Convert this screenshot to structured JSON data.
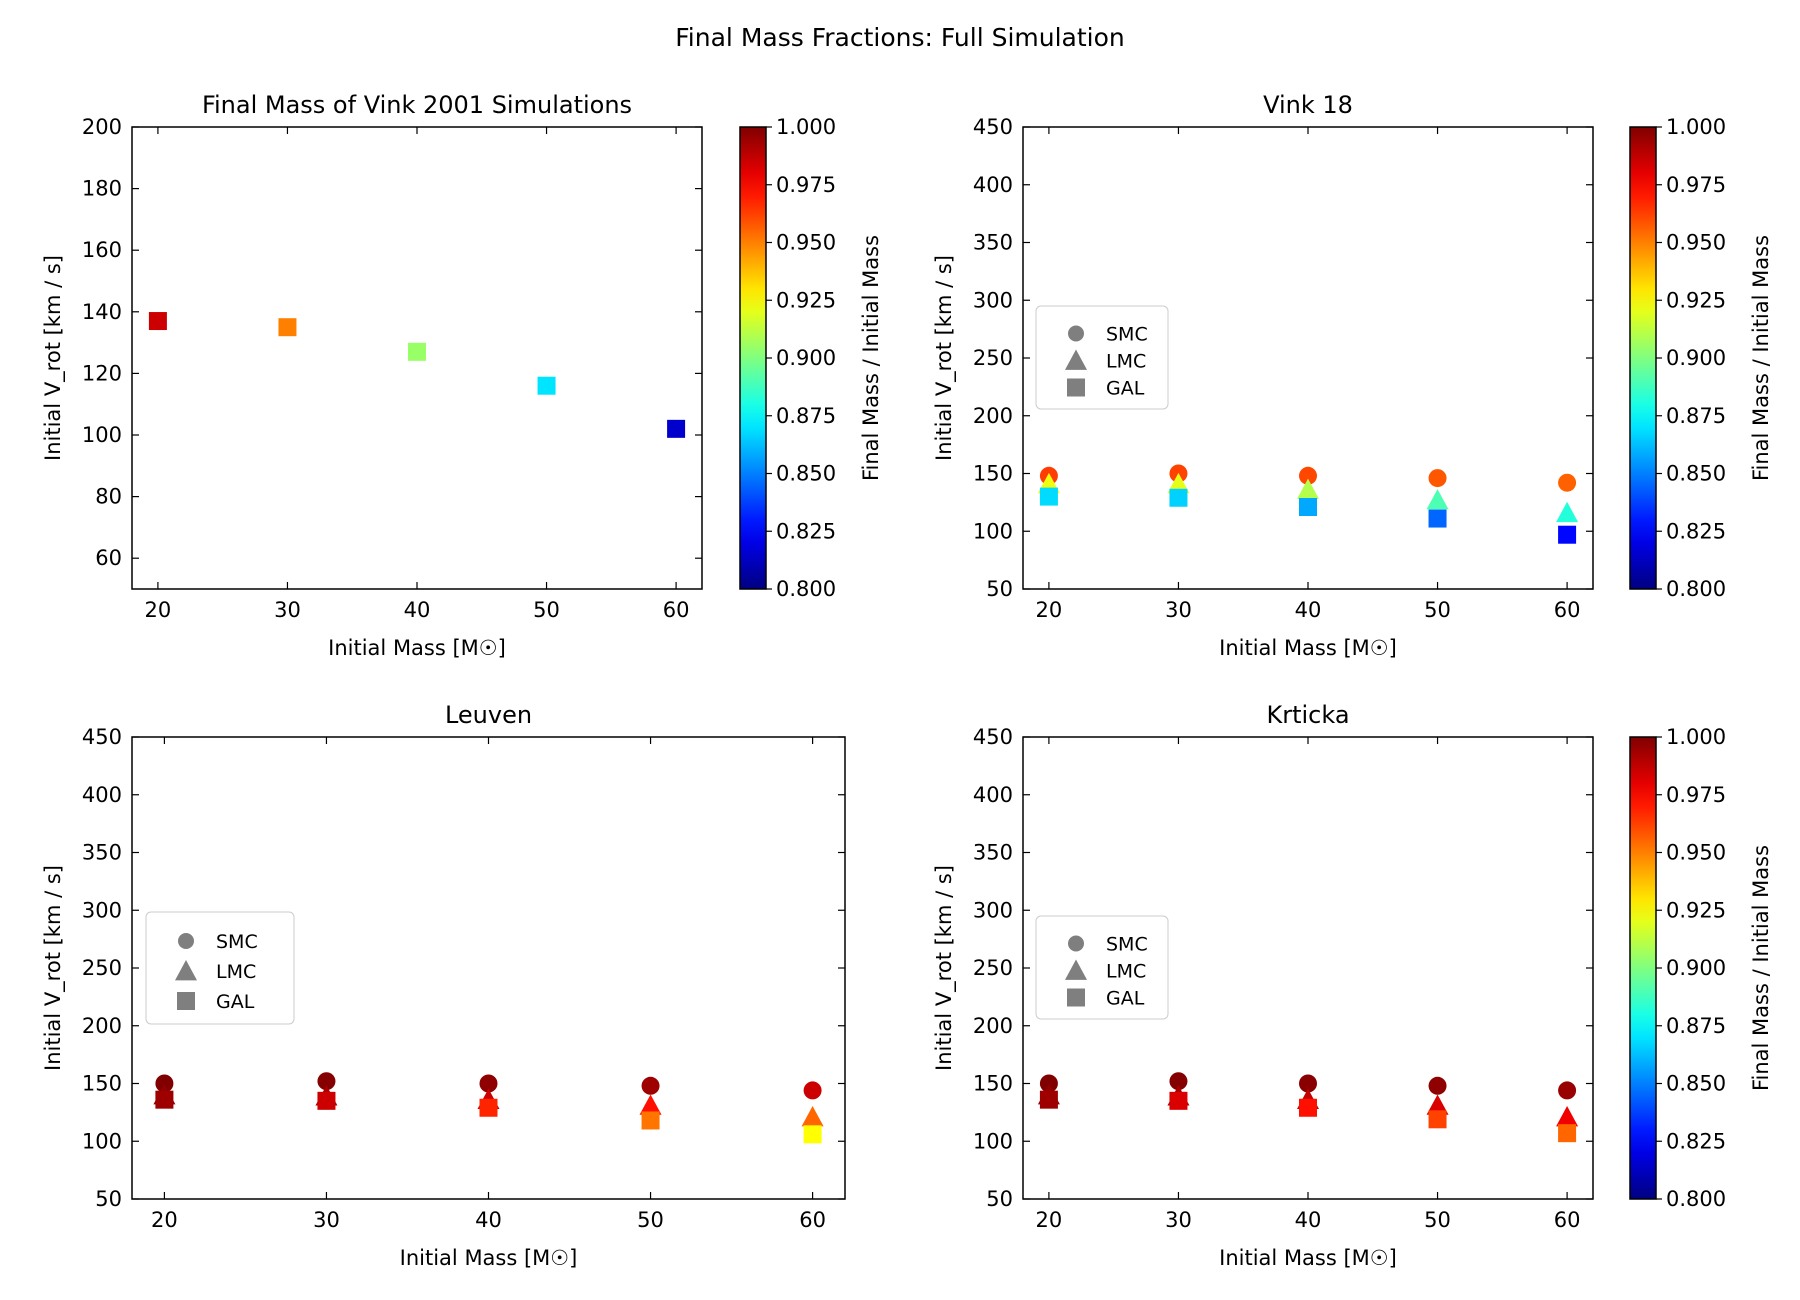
{
  "suptitle": "Final Mass Fractions: Full Simulation",
  "chart_data": [
    {
      "type": "scatter",
      "title": "Final Mass of Vink 2001 Simulations",
      "xlabel": "Initial Mass [M☉]",
      "ylabel": "Initial V_rot [km / s]",
      "xlim": [
        18,
        62
      ],
      "ylim": [
        50,
        200
      ],
      "xticks": [
        20,
        30,
        40,
        50,
        60
      ],
      "yticks": [
        60,
        80,
        100,
        120,
        140,
        160,
        180,
        200
      ],
      "legend": null,
      "colorbar": {
        "label": "Final Mass / Initial Mass",
        "range": [
          0.8,
          1.0
        ],
        "ticks": [
          "0.800",
          "0.825",
          "0.850",
          "0.875",
          "0.900",
          "0.925",
          "0.950",
          "0.975",
          "1.000"
        ]
      },
      "series": [
        {
          "marker": "square",
          "points": [
            {
              "x": 20,
              "y": 137,
              "c": 0.985
            },
            {
              "x": 30,
              "y": 135,
              "c": 0.95
            },
            {
              "x": 40,
              "y": 127,
              "c": 0.905
            },
            {
              "x": 50,
              "y": 116,
              "c": 0.87
            },
            {
              "x": 60,
              "y": 102,
              "c": 0.815
            }
          ]
        }
      ]
    },
    {
      "type": "scatter",
      "title": "Vink 18",
      "xlabel": "Initial Mass [M☉]",
      "ylabel": "Initial V_rot [km / s]",
      "xlim": [
        18,
        62
      ],
      "ylim": [
        50,
        450
      ],
      "xticks": [
        20,
        30,
        40,
        50,
        60
      ],
      "yticks": [
        50,
        100,
        150,
        200,
        250,
        300,
        350,
        400,
        450
      ],
      "legend": {
        "position": "center-left",
        "entries": [
          "SMC",
          "LMC",
          "GAL"
        ]
      },
      "colorbar": {
        "label": "Final Mass / Initial Mass",
        "range": [
          0.8,
          1.0
        ],
        "ticks": [
          "0.800",
          "0.825",
          "0.850",
          "0.875",
          "0.900",
          "0.925",
          "0.950",
          "0.975",
          "1.000"
        ]
      },
      "series": [
        {
          "name": "SMC",
          "marker": "circle",
          "points": [
            {
              "x": 20,
              "y": 148,
              "c": 0.963
            },
            {
              "x": 30,
              "y": 150,
              "c": 0.962
            },
            {
              "x": 40,
              "y": 148,
              "c": 0.961
            },
            {
              "x": 50,
              "y": 146,
              "c": 0.958
            },
            {
              "x": 60,
              "y": 142,
              "c": 0.956
            }
          ]
        },
        {
          "name": "LMC",
          "marker": "triangle",
          "points": [
            {
              "x": 20,
              "y": 141,
              "c": 0.922
            },
            {
              "x": 30,
              "y": 141,
              "c": 0.92
            },
            {
              "x": 40,
              "y": 136,
              "c": 0.91
            },
            {
              "x": 50,
              "y": 127,
              "c": 0.89
            },
            {
              "x": 60,
              "y": 116,
              "c": 0.882
            }
          ]
        },
        {
          "name": "GAL",
          "marker": "square",
          "points": [
            {
              "x": 20,
              "y": 130,
              "c": 0.868
            },
            {
              "x": 30,
              "y": 129,
              "c": 0.866
            },
            {
              "x": 40,
              "y": 121,
              "c": 0.858
            },
            {
              "x": 50,
              "y": 111,
              "c": 0.845
            },
            {
              "x": 60,
              "y": 97,
              "c": 0.826
            }
          ]
        }
      ]
    },
    {
      "type": "scatter",
      "title": "Leuven",
      "xlabel": "Initial Mass [M☉]",
      "ylabel": "Initial V_rot [km / s]",
      "xlim": [
        18,
        62
      ],
      "ylim": [
        50,
        450
      ],
      "xticks": [
        20,
        30,
        40,
        50,
        60
      ],
      "yticks": [
        50,
        100,
        150,
        200,
        250,
        300,
        350,
        400,
        450
      ],
      "legend": {
        "position": "center-left",
        "entries": [
          "SMC",
          "LMC",
          "GAL"
        ]
      },
      "colorbar": null,
      "series": [
        {
          "name": "SMC",
          "marker": "circle",
          "points": [
            {
              "x": 20,
              "y": 150,
              "c": 1.0
            },
            {
              "x": 30,
              "y": 152,
              "c": 0.999
            },
            {
              "x": 40,
              "y": 150,
              "c": 0.997
            },
            {
              "x": 50,
              "y": 148,
              "c": 0.994
            },
            {
              "x": 60,
              "y": 144,
              "c": 0.985
            }
          ]
        },
        {
          "name": "LMC",
          "marker": "triangle",
          "points": [
            {
              "x": 20,
              "y": 140,
              "c": 0.996
            },
            {
              "x": 30,
              "y": 139,
              "c": 0.992
            },
            {
              "x": 40,
              "y": 136,
              "c": 0.985
            },
            {
              "x": 50,
              "y": 131,
              "c": 0.972
            },
            {
              "x": 60,
              "y": 121,
              "c": 0.955
            }
          ]
        },
        {
          "name": "GAL",
          "marker": "square",
          "points": [
            {
              "x": 20,
              "y": 136,
              "c": 0.994
            },
            {
              "x": 30,
              "y": 135,
              "c": 0.985
            },
            {
              "x": 40,
              "y": 129,
              "c": 0.968
            },
            {
              "x": 50,
              "y": 118,
              "c": 0.952
            },
            {
              "x": 60,
              "y": 106,
              "c": 0.925
            }
          ]
        }
      ]
    },
    {
      "type": "scatter",
      "title": "Krticka",
      "xlabel": "Initial Mass [M☉]",
      "ylabel": "Initial V_rot [km / s]",
      "xlim": [
        18,
        62
      ],
      "ylim": [
        50,
        450
      ],
      "xticks": [
        20,
        30,
        40,
        50,
        60
      ],
      "yticks": [
        50,
        100,
        150,
        200,
        250,
        300,
        350,
        400,
        450
      ],
      "legend": {
        "position": "center-left",
        "entries": [
          "SMC",
          "LMC",
          "GAL"
        ]
      },
      "colorbar": {
        "label": "Final Mass / Initial Mass",
        "range": [
          0.8,
          1.0
        ],
        "ticks": [
          "0.800",
          "0.825",
          "0.850",
          "0.875",
          "0.900",
          "0.925",
          "0.950",
          "0.975",
          "1.000"
        ]
      },
      "series": [
        {
          "name": "SMC",
          "marker": "circle",
          "points": [
            {
              "x": 20,
              "y": 150,
              "c": 1.0
            },
            {
              "x": 30,
              "y": 152,
              "c": 0.999
            },
            {
              "x": 40,
              "y": 150,
              "c": 0.998
            },
            {
              "x": 50,
              "y": 148,
              "c": 0.997
            },
            {
              "x": 60,
              "y": 144,
              "c": 0.995
            }
          ]
        },
        {
          "name": "LMC",
          "marker": "triangle",
          "points": [
            {
              "x": 20,
              "y": 140,
              "c": 0.996
            },
            {
              "x": 30,
              "y": 139,
              "c": 0.992
            },
            {
              "x": 40,
              "y": 136,
              "c": 0.987
            },
            {
              "x": 50,
              "y": 131,
              "c": 0.982
            },
            {
              "x": 60,
              "y": 121,
              "c": 0.978
            }
          ]
        },
        {
          "name": "GAL",
          "marker": "square",
          "points": [
            {
              "x": 20,
              "y": 136,
              "c": 0.994
            },
            {
              "x": 30,
              "y": 135,
              "c": 0.982
            },
            {
              "x": 40,
              "y": 129,
              "c": 0.972
            },
            {
              "x": 50,
              "y": 119,
              "c": 0.962
            },
            {
              "x": 60,
              "y": 107,
              "c": 0.955
            }
          ]
        }
      ]
    }
  ]
}
